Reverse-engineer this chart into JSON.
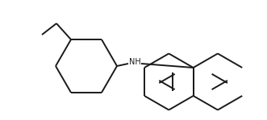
{
  "background_color": "#ffffff",
  "line_color": "#1a1a1a",
  "lw": 1.4,
  "nh_label": "NH",
  "nh_fontsize": 7.0,
  "figsize": [
    3.27,
    1.45
  ],
  "dpi": 100
}
